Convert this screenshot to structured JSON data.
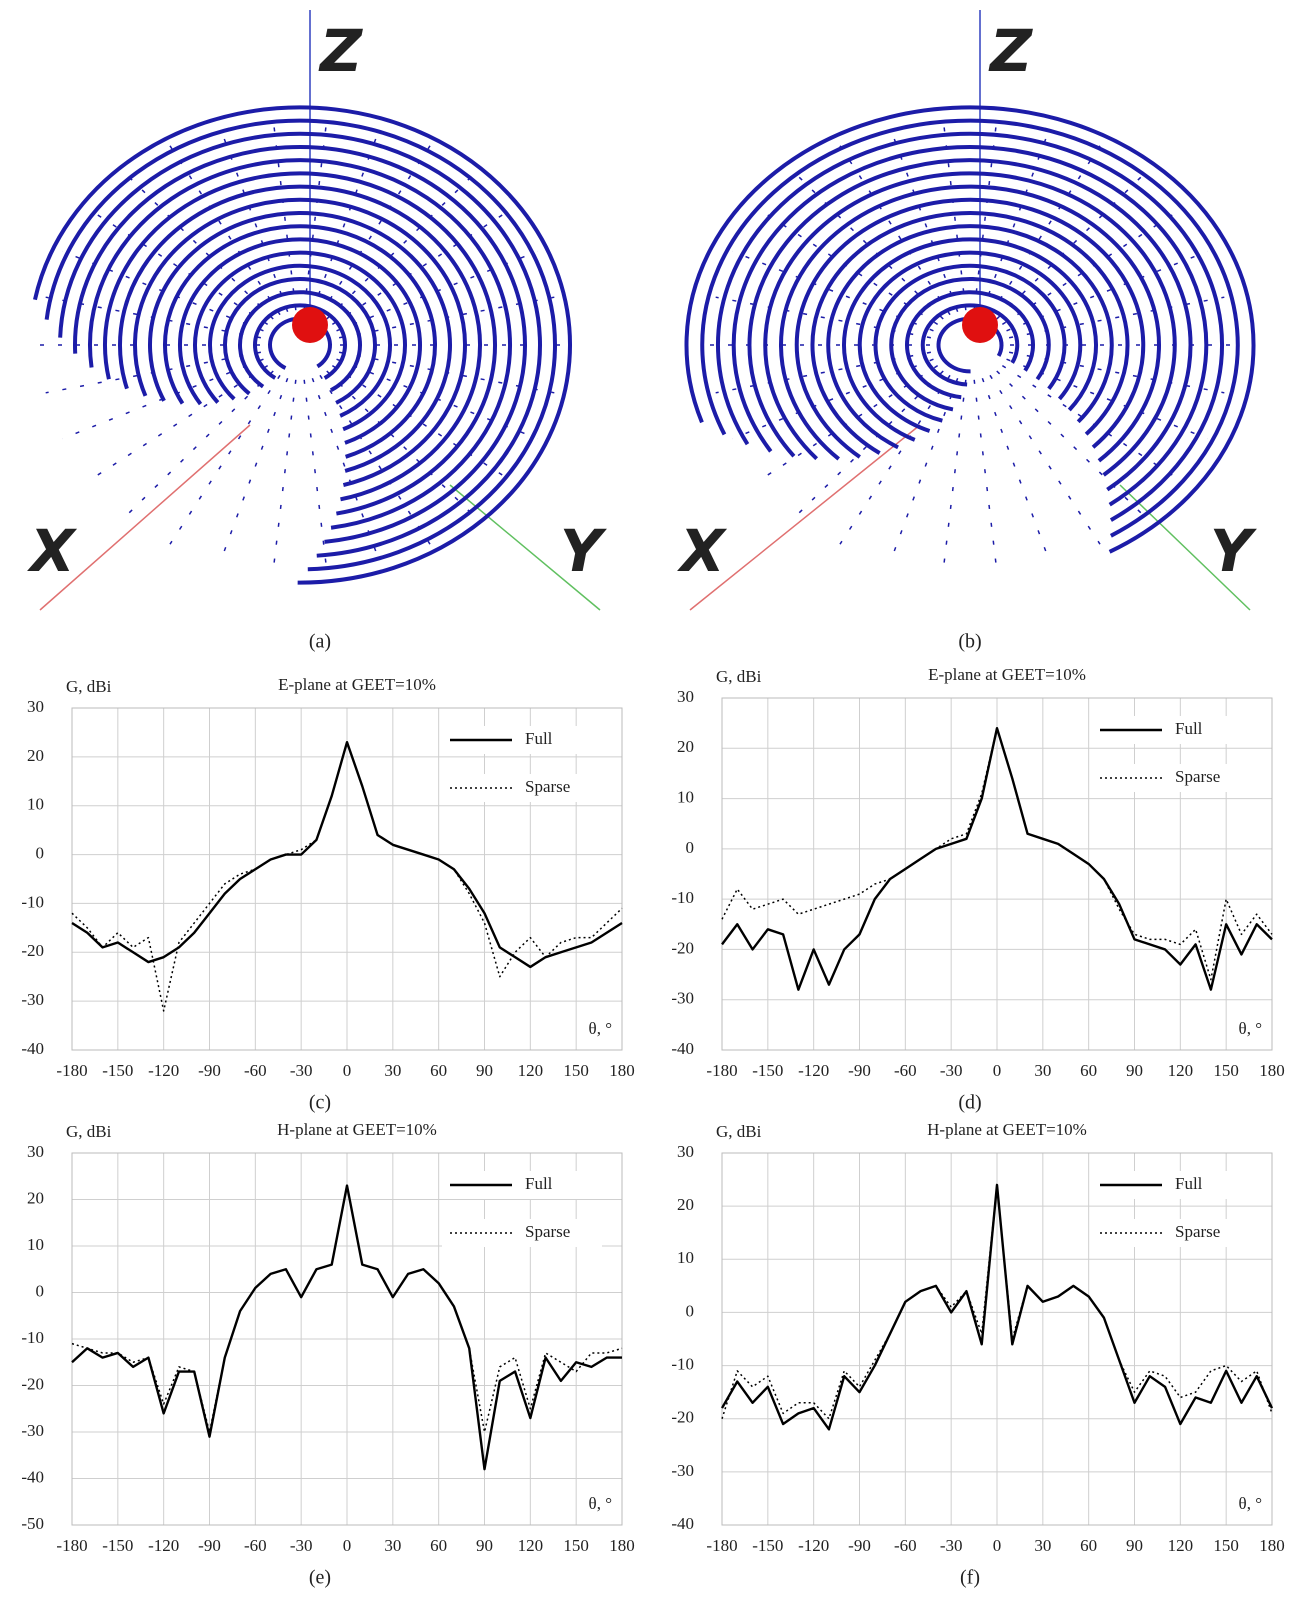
{
  "images": [
    {
      "axis_labels": {
        "x": "X",
        "y": "Y",
        "z": "Z"
      },
      "caption": "(a)"
    },
    {
      "axis_labels": {
        "x": "X",
        "y": "Y",
        "z": "Z"
      },
      "caption": "(b)"
    }
  ],
  "chart_data": [
    {
      "type": "line",
      "title": "E-plane at GEET=10%",
      "y_label": "G, dBi",
      "x_label": "θ, °",
      "caption": "(c)",
      "x": [
        -180,
        -170,
        -160,
        -150,
        -140,
        -130,
        -120,
        -110,
        -100,
        -90,
        -80,
        -70,
        -60,
        -50,
        -40,
        -30,
        -20,
        -10,
        0,
        10,
        20,
        30,
        40,
        50,
        60,
        70,
        80,
        90,
        100,
        110,
        120,
        130,
        140,
        150,
        160,
        170,
        180
      ],
      "xlim": [
        -180,
        180
      ],
      "xticks": [
        -180,
        -150,
        -120,
        -90,
        -60,
        -30,
        0,
        30,
        60,
        90,
        120,
        150,
        180
      ],
      "ylim": [
        -40,
        30
      ],
      "yticks": [
        -40,
        -30,
        -20,
        -10,
        0,
        10,
        20,
        30
      ],
      "grid": true,
      "legend": "upper right",
      "series": [
        {
          "name": "Full",
          "color": "#000000",
          "style": "solid",
          "values": [
            -14,
            -16,
            -19,
            -18,
            -20,
            -22,
            -21,
            -19,
            -16,
            -12,
            -8,
            -5,
            -3,
            -1,
            0,
            0,
            3,
            12,
            23,
            14,
            4,
            2,
            1,
            0,
            -1,
            -3,
            -7,
            -12,
            -19,
            -21,
            -23,
            -21,
            -20,
            -19,
            -18,
            -16,
            -14
          ]
        },
        {
          "name": "Sparse",
          "color": "#000000",
          "style": "dotted",
          "values": [
            -12,
            -15,
            -19,
            -16,
            -19,
            -17,
            -32,
            -18,
            -14,
            -10,
            -6,
            -4,
            -3,
            -1,
            0,
            1,
            3,
            12,
            23,
            14,
            4,
            2,
            1,
            0,
            -1,
            -3,
            -8,
            -14,
            -25,
            -20,
            -17,
            -21,
            -18,
            -17,
            -17,
            -14,
            -11
          ]
        }
      ]
    },
    {
      "type": "line",
      "title": "E-plane at GEET=10%",
      "y_label": "G, dBi",
      "x_label": "θ, °",
      "caption": "(d)",
      "x": [
        -180,
        -170,
        -160,
        -150,
        -140,
        -130,
        -120,
        -110,
        -100,
        -90,
        -80,
        -70,
        -60,
        -50,
        -40,
        -30,
        -20,
        -10,
        0,
        10,
        20,
        30,
        40,
        50,
        60,
        70,
        80,
        90,
        100,
        110,
        120,
        130,
        140,
        150,
        160,
        170,
        180
      ],
      "xlim": [
        -180,
        180
      ],
      "xticks": [
        -180,
        -150,
        -120,
        -90,
        -60,
        -30,
        0,
        30,
        60,
        90,
        120,
        150,
        180
      ],
      "ylim": [
        -40,
        30
      ],
      "yticks": [
        -40,
        -30,
        -20,
        -10,
        0,
        10,
        20,
        30
      ],
      "grid": true,
      "legend": "upper right",
      "series": [
        {
          "name": "Full",
          "color": "#000000",
          "style": "solid",
          "values": [
            -19,
            -15,
            -20,
            -16,
            -17,
            -28,
            -20,
            -27,
            -20,
            -17,
            -10,
            -6,
            -4,
            -2,
            0,
            1,
            2,
            10,
            24,
            14,
            3,
            2,
            1,
            -1,
            -3,
            -6,
            -11,
            -18,
            -19,
            -20,
            -23,
            -19,
            -28,
            -15,
            -21,
            -15,
            -18
          ]
        },
        {
          "name": "Sparse",
          "color": "#000000",
          "style": "dotted",
          "values": [
            -14,
            -8,
            -12,
            -11,
            -10,
            -13,
            -12,
            -11,
            -10,
            -9,
            -7,
            -6,
            -4,
            -2,
            0,
            2,
            3,
            11,
            24,
            14,
            3,
            2,
            1,
            -1,
            -3,
            -6,
            -12,
            -17,
            -18,
            -18,
            -19,
            -16,
            -26,
            -10,
            -17,
            -13,
            -17
          ]
        }
      ]
    },
    {
      "type": "line",
      "title": "H-plane at GEET=10%",
      "y_label": "G, dBi",
      "x_label": "θ, °",
      "caption": "(e)",
      "x": [
        -180,
        -170,
        -160,
        -150,
        -140,
        -130,
        -120,
        -110,
        -100,
        -90,
        -80,
        -70,
        -60,
        -50,
        -40,
        -30,
        -20,
        -10,
        0,
        10,
        20,
        30,
        40,
        50,
        60,
        70,
        80,
        90,
        100,
        110,
        120,
        130,
        140,
        150,
        160,
        170,
        180
      ],
      "xlim": [
        -180,
        180
      ],
      "xticks": [
        -180,
        -150,
        -120,
        -90,
        -60,
        -30,
        0,
        30,
        60,
        90,
        120,
        150,
        180
      ],
      "ylim": [
        -50,
        30
      ],
      "yticks": [
        -50,
        -40,
        -30,
        -20,
        -10,
        0,
        10,
        20,
        30
      ],
      "grid": true,
      "legend": "upper right",
      "series": [
        {
          "name": "Full",
          "color": "#000000",
          "style": "solid",
          "values": [
            -15,
            -12,
            -14,
            -13,
            -16,
            -14,
            -26,
            -17,
            -17,
            -31,
            -14,
            -4,
            1,
            4,
            5,
            -1,
            5,
            6,
            23,
            6,
            5,
            -1,
            4,
            5,
            2,
            -3,
            -12,
            -38,
            -19,
            -17,
            -27,
            -14,
            -19,
            -15,
            -16,
            -14,
            -14
          ]
        },
        {
          "name": "Sparse",
          "color": "#000000",
          "style": "dotted",
          "values": [
            -11,
            -12,
            -13,
            -13,
            -15,
            -14,
            -24,
            -16,
            -17,
            -30,
            -14,
            -4,
            1,
            4,
            5,
            -1,
            5,
            6,
            23,
            6,
            5,
            -1,
            4,
            5,
            2,
            -3,
            -12,
            -30,
            -16,
            -14,
            -25,
            -13,
            -15,
            -17,
            -13,
            -13,
            -12
          ]
        }
      ]
    },
    {
      "type": "line",
      "title": "H-plane at GEET=10%",
      "y_label": "G, dBi",
      "x_label": "θ, °",
      "caption": "(f)",
      "x": [
        -180,
        -170,
        -160,
        -150,
        -140,
        -130,
        -120,
        -110,
        -100,
        -90,
        -80,
        -70,
        -60,
        -50,
        -40,
        -30,
        -20,
        -10,
        0,
        10,
        20,
        30,
        40,
        50,
        60,
        70,
        80,
        90,
        100,
        110,
        120,
        130,
        140,
        150,
        160,
        170,
        180
      ],
      "xlim": [
        -180,
        180
      ],
      "xticks": [
        -180,
        -150,
        -120,
        -90,
        -60,
        -30,
        0,
        30,
        60,
        90,
        120,
        150,
        180
      ],
      "ylim": [
        -40,
        30
      ],
      "yticks": [
        -40,
        -30,
        -20,
        -10,
        0,
        10,
        20,
        30
      ],
      "grid": true,
      "legend": "upper right",
      "series": [
        {
          "name": "Full",
          "color": "#000000",
          "style": "solid",
          "values": [
            -18,
            -13,
            -17,
            -14,
            -21,
            -19,
            -18,
            -22,
            -12,
            -15,
            -10,
            -4,
            2,
            4,
            5,
            0,
            4,
            -6,
            24,
            -6,
            5,
            2,
            3,
            5,
            3,
            -1,
            -9,
            -17,
            -12,
            -14,
            -21,
            -16,
            -17,
            -11,
            -17,
            -12,
            -18
          ]
        },
        {
          "name": "Sparse",
          "color": "#000000",
          "style": "dotted",
          "values": [
            -20,
            -11,
            -14,
            -12,
            -19,
            -17,
            -17,
            -20,
            -11,
            -14,
            -9,
            -4,
            2,
            4,
            5,
            1,
            4,
            -4,
            24,
            -5,
            5,
            2,
            3,
            5,
            3,
            -1,
            -9,
            -15,
            -11,
            -12,
            -16,
            -15,
            -11,
            -10,
            -13,
            -11,
            -19
          ]
        }
      ]
    }
  ]
}
